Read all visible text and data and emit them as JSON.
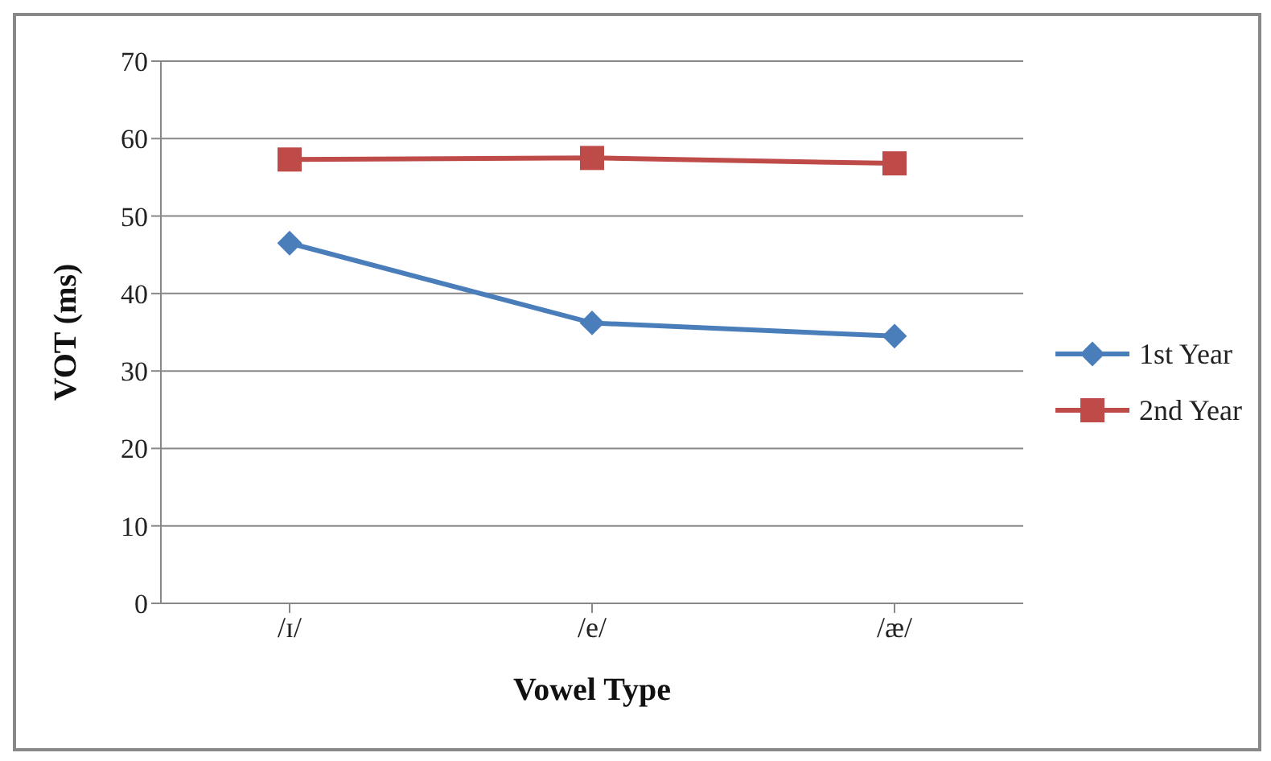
{
  "chart_data": {
    "type": "line",
    "xlabel": "Vowel Type",
    "ylabel": "VOT (ms)",
    "categories": [
      "/ɪ/",
      "/e/",
      "/æ/"
    ],
    "series": [
      {
        "name": "1st Year",
        "color": "#4a7ebb",
        "marker": "diamond",
        "values": [
          46.5,
          36.2,
          34.5
        ]
      },
      {
        "name": "2nd Year",
        "color": "#be4b48",
        "marker": "square",
        "values": [
          57.3,
          57.5,
          56.8
        ]
      }
    ],
    "ylim": [
      0,
      70
    ],
    "yticks": [
      0,
      10,
      20,
      30,
      40,
      50,
      60,
      70
    ],
    "grid": "y",
    "legend": "right",
    "line_style": "solid"
  }
}
